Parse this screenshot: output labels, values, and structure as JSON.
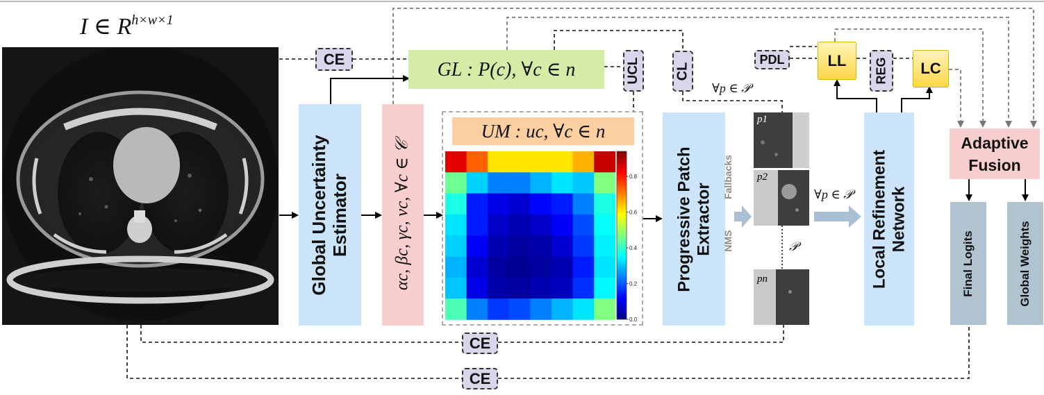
{
  "input": {
    "label": "I ∈ R",
    "superscript": "h×w×1"
  },
  "global_estimator": {
    "label_line1": "Global Uncertainty",
    "label_line2": "Estimator"
  },
  "params": {
    "label": "αc, βc, γc, νc, ∀c ∈ 𝒞"
  },
  "gl": {
    "label": "GL : P(c), ∀c ∈ n"
  },
  "um": {
    "label": "UM : uc, ∀c ∈ n",
    "colorbar_ticks": [
      "0.8",
      "0.6",
      "0.4",
      "0.2",
      "0.0"
    ],
    "heatmap_values": [
      [
        0.9,
        0.78,
        0.65,
        0.65,
        0.65,
        0.65,
        0.7,
        0.93
      ],
      [
        0.48,
        0.33,
        0.25,
        0.25,
        0.3,
        0.35,
        0.32,
        0.5
      ],
      [
        0.4,
        0.15,
        0.1,
        0.08,
        0.13,
        0.15,
        0.25,
        0.4
      ],
      [
        0.35,
        0.15,
        0.07,
        0.05,
        0.07,
        0.12,
        0.2,
        0.38
      ],
      [
        0.33,
        0.12,
        0.05,
        0.03,
        0.04,
        0.08,
        0.18,
        0.36
      ],
      [
        0.3,
        0.08,
        0.03,
        0.02,
        0.03,
        0.05,
        0.15,
        0.35
      ],
      [
        0.32,
        0.1,
        0.04,
        0.03,
        0.05,
        0.06,
        0.17,
        0.37
      ],
      [
        0.45,
        0.25,
        0.18,
        0.2,
        0.25,
        0.3,
        0.35,
        0.5
      ]
    ]
  },
  "ppe": {
    "label_line1": "Progressive Patch",
    "label_line2": "Extractor",
    "fallbacks": "Fallbacks",
    "nms": "NMS"
  },
  "patches": {
    "forall_top": "∀p ∈ 𝒫",
    "p1": "p1",
    "p2": "p2",
    "pn": "pn",
    "set": "𝒫",
    "forall_mid": "∀p ∈ 𝒫"
  },
  "lrn": {
    "label_line1": "Local Refinement",
    "label_line2": "Network"
  },
  "fusion": {
    "label_line1": "Adaptive",
    "label_line2": "Fusion"
  },
  "outputs": {
    "final_logits": "Final Logits",
    "global_weights": "Global Weights"
  },
  "tags": {
    "ce_top": "CE",
    "ucl": "UCL",
    "cl": "CL",
    "pdl": "PDL",
    "reg": "REG",
    "ce_mid": "CE",
    "ce_bottom": "CE"
  },
  "yellow": {
    "ll": "LL",
    "lc": "LC"
  },
  "colors": {
    "blue_box": "#cce4fa",
    "pink_box": "#f8cecf",
    "green_box": "#d5eca7",
    "orange_box": "#fbcf9f",
    "gray_box": "#b2c3d0",
    "tag_fill": "#d9d5ea",
    "yellow_box": "#ffd74a"
  }
}
